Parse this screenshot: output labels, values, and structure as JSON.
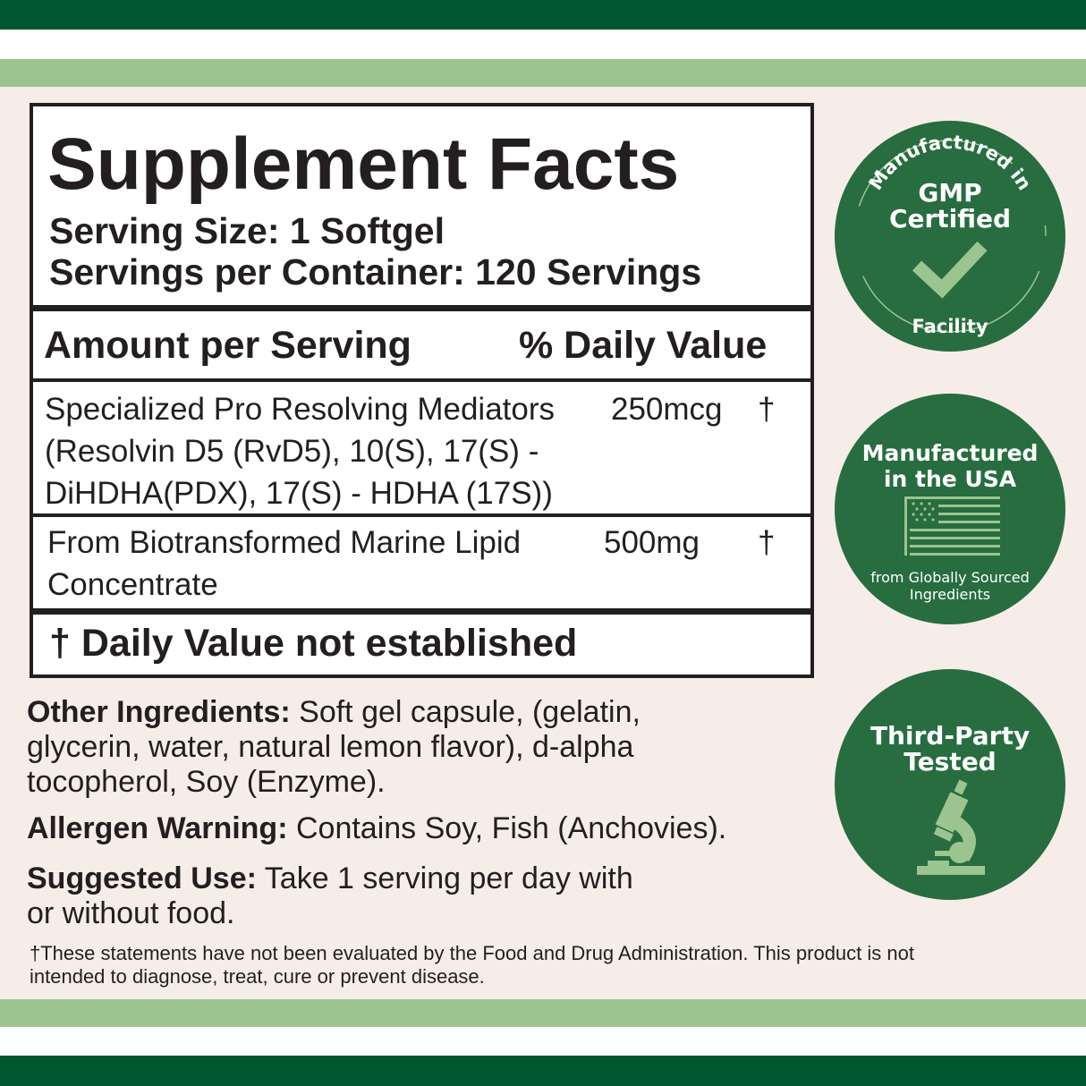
{
  "colors": {
    "dark_green": "#00572f",
    "light_green": "#9bc48f",
    "badge_green": "#276d40",
    "background": "#f6ede9"
  },
  "facts": {
    "title": "Supplement Facts",
    "serving_size": "Serving Size: 1 Softgel",
    "servings_per_container": "Servings per Container: 120 Servings",
    "header_amount": "Amount per Serving",
    "header_dv": "% Daily Value",
    "rows": [
      {
        "name_lines": [
          "Specialized Pro Resolving Mediators",
          "(Resolvin D5 (RvD5), 10(S), 17(S) -",
          "DiHDHA(PDX), 17(S) - HDHA (17S))"
        ],
        "amount": "250mcg",
        "dv": "†"
      },
      {
        "name_lines": [
          "From Biotransformed Marine Lipid",
          "Concentrate"
        ],
        "amount": "500mg",
        "dv": "†"
      }
    ],
    "footnote": "† Daily Value not established"
  },
  "other_ingredients": {
    "label": "Other Ingredients:",
    "lines": [
      " Soft gel capsule, (gelatin,",
      "glycerin, water, natural lemon flavor), d-alpha",
      "tocopherol, Soy (Enzyme)."
    ]
  },
  "allergen": {
    "label": "Allergen Warning:",
    "text": " Contains Soy, Fish (Anchovies)."
  },
  "suggested_use": {
    "label": "Suggested Use:",
    "lines": [
      " Take 1 serving per day with",
      "or without food."
    ]
  },
  "disclaimer": [
    "†These statements have not been evaluated by the Food and Drug Administration. This product is not",
    "intended to diagnose, treat, cure or prevent disease."
  ],
  "badges": [
    {
      "arc_top": "Manufactured in",
      "title_lines": [
        "GMP",
        "Certified"
      ],
      "arc_bottom": "Facility",
      "icon": "checkmark-icon"
    },
    {
      "title_lines": [
        "Manufactured",
        "in the USA"
      ],
      "subtitle_lines": [
        "from Globally Sourced",
        "Ingredients"
      ],
      "icon": "us-flag-icon"
    },
    {
      "title_lines": [
        "Third-Party",
        "Tested"
      ],
      "icon": "microscope-icon"
    }
  ]
}
